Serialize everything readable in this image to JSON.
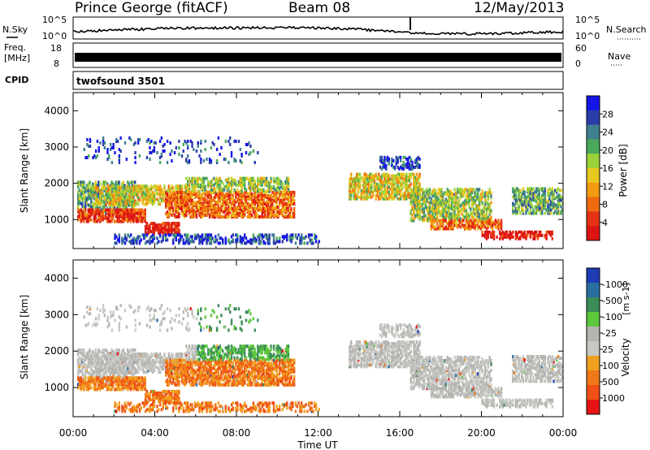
{
  "header": {
    "station": "Prince George (fitACF)",
    "beam": "Beam 08",
    "date": "12/May/2013"
  },
  "noise_panel": {
    "left_label": "N.Sky",
    "right_label": "N.Search",
    "left_ticks": [
      "10^5",
      "10^0"
    ],
    "right_ticks": [
      "10^5",
      "10^0"
    ]
  },
  "freq_panel": {
    "left_label_line1": "Freq.",
    "left_label_line2": "[MHz]",
    "left_ticks": [
      "18",
      "8"
    ],
    "right_label": "Nave",
    "right_ticks": [
      "60",
      "0"
    ]
  },
  "cpid_panel": {
    "label": "CPID",
    "program": "twofsound 3501"
  },
  "colors": {
    "axis": "#000000",
    "background": "#ffffff"
  },
  "chart_data": [
    {
      "type": "heatmap",
      "name": "power",
      "ylabel": "Slant Range [km]",
      "xlim": [
        0,
        24
      ],
      "ylim": [
        200,
        4500
      ],
      "y_ticks": [
        "1000",
        "2000",
        "3000",
        "4000"
      ],
      "y_tick_values": [
        1000,
        2000,
        3000,
        4000
      ],
      "colorbar_label": "Power [dB]",
      "colorbar_ticks": [
        "4",
        "8",
        "12",
        "16",
        "20",
        "24",
        "28"
      ],
      "colorbar_colors": [
        "#1414e6",
        "#2a3ca8",
        "#3f7f8f",
        "#4aa85a",
        "#9cd33a",
        "#e6c81e",
        "#f29a10",
        "#f06a10",
        "#e63214",
        "#dc1414"
      ]
    },
    {
      "type": "heatmap",
      "name": "velocity",
      "ylabel": "Slant Range [km]",
      "xlabel": "Time UT",
      "xlim": [
        0,
        24
      ],
      "ylim": [
        200,
        4500
      ],
      "x_ticks": [
        "00:00",
        "04:00",
        "08:00",
        "12:00",
        "16:00",
        "20:00",
        "00:00"
      ],
      "y_ticks": [
        "1000",
        "2000",
        "3000",
        "4000"
      ],
      "y_tick_values": [
        1000,
        2000,
        3000,
        4000
      ],
      "colorbar_label": "Velocity",
      "colorbar_units": "[m s-1]",
      "colorbar_ticks": [
        "1000",
        "500",
        "100",
        "25",
        "-25",
        "-100",
        "-500",
        "-1000"
      ],
      "colorbar_colors": [
        "#1e3cb4",
        "#2a6ea0",
        "#3c8c5a",
        "#5cc83c",
        "#b4b4b0",
        "#c8c8c4",
        "#f0a020",
        "#f07818",
        "#f05014",
        "#e61414"
      ]
    }
  ]
}
